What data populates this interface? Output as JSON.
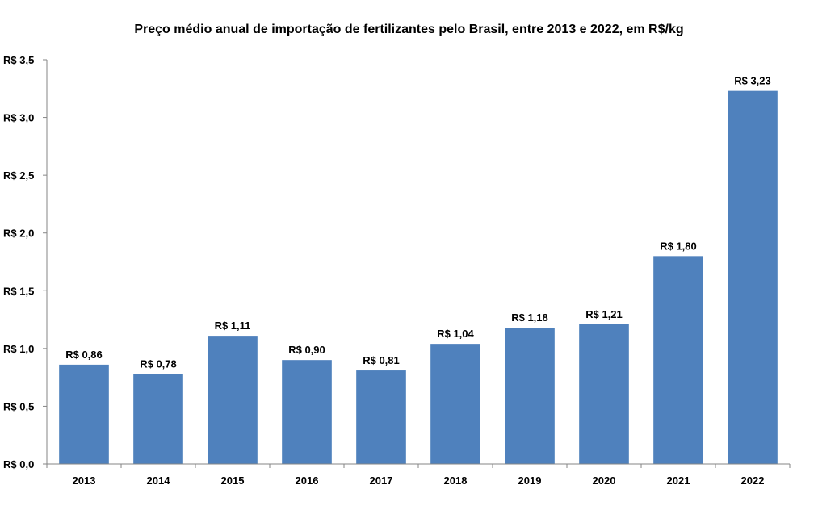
{
  "chart_data": {
    "type": "bar",
    "title": "Preço médio anual de importação de fertilizantes pelo Brasil, entre 2013 e 2022, em R$/kg",
    "xlabel": "",
    "ylabel": "",
    "categories": [
      "2013",
      "2014",
      "2015",
      "2016",
      "2017",
      "2018",
      "2019",
      "2020",
      "2021",
      "2022"
    ],
    "values": [
      0.86,
      0.78,
      1.11,
      0.9,
      0.81,
      1.04,
      1.18,
      1.21,
      1.8,
      3.23
    ],
    "data_labels": [
      "R$ 0,86",
      "R$ 0,78",
      "R$ 1,11",
      "R$ 0,90",
      "R$ 0,81",
      "R$ 1,04",
      "R$ 1,18",
      "R$ 1,21",
      "R$ 1,80",
      "R$ 3,23"
    ],
    "ylim": [
      0,
      3.5
    ],
    "yticks": [
      0,
      0.5,
      1.0,
      1.5,
      2.0,
      2.5,
      3.0,
      3.5
    ],
    "ytick_labels": [
      "R$ 0,0",
      "R$ 0,5",
      "R$ 1,0",
      "R$ 1,5",
      "R$ 2,0",
      "R$ 2,5",
      "R$ 3,0",
      "R$ 3,5"
    ],
    "grid": false,
    "legend": "none",
    "bar_color": "#4F81BD"
  }
}
